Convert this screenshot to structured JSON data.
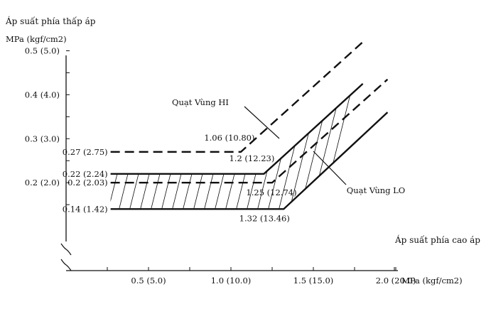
{
  "chart_data": {
    "type": "line",
    "ylabel": "Áp suất phía thấp áp",
    "yunit": "MPa (kgf/cm2)",
    "xlabel": "Áp suất phía cao áp",
    "xunit": "MPa (kgf/cm2)",
    "xlim": [
      0.0,
      2.5
    ],
    "ylim": [
      0.0,
      0.6
    ],
    "x_ticks": [
      {
        "value": 0.5,
        "label": "0.5 (5.0)"
      },
      {
        "value": 1.0,
        "label": "1.0 (10.0)"
      },
      {
        "value": 1.5,
        "label": "1.5 (15.0)"
      },
      {
        "value": 2.0,
        "label": "2.0 (20.0)"
      }
    ],
    "y_ticks": [
      {
        "value": 0.2,
        "label": "0.2 (2.0)"
      },
      {
        "value": 0.3,
        "label": "0.3 (3.0)"
      },
      {
        "value": 0.4,
        "label": "0.4 (4.0)"
      },
      {
        "value": 0.5,
        "label": "0.5 (5.0)"
      }
    ],
    "series": [
      {
        "name": "Quạt Vùng HI",
        "style": "dashed",
        "x": [
          0.27,
          1.06,
          1.8
        ],
        "y": [
          0.27,
          0.27,
          0.52
        ]
      },
      {
        "name": "Quạt Vùng HI",
        "style": "dashed",
        "x": [
          0.27,
          1.25,
          1.95
        ],
        "y": [
          0.2,
          0.2,
          0.435
        ]
      },
      {
        "name": "Quạt Vùng LO",
        "style": "solid",
        "x": [
          0.27,
          1.2,
          1.8
        ],
        "y": [
          0.22,
          0.22,
          0.425
        ]
      },
      {
        "name": "Quạt Vùng LO",
        "style": "solid",
        "x": [
          0.27,
          1.32,
          1.95
        ],
        "y": [
          0.14,
          0.14,
          0.36
        ]
      }
    ],
    "annotations": [
      {
        "text": "0.27 (2.75)",
        "series": 0,
        "at": "start"
      },
      {
        "text": "0.22 (2.24)",
        "series": 2,
        "at": "start"
      },
      {
        "text": "0.2 (2.03)",
        "series": 1,
        "at": "start"
      },
      {
        "text": "0.14 (1.42)",
        "series": 3,
        "at": "start"
      },
      {
        "text": "1.06 (10.80)",
        "series": 0,
        "at": "knee"
      },
      {
        "text": "1.2 (12.23)",
        "series": 2,
        "at": "knee"
      },
      {
        "text": "1.25 (12.74)",
        "series": 1,
        "at": "knee"
      },
      {
        "text": "1.32 (13.46)",
        "series": 3,
        "at": "knee"
      },
      {
        "text": "Quạt Vùng HI",
        "role": "callout"
      },
      {
        "text": "Quạt Vùng LO",
        "role": "callout"
      }
    ],
    "shaded_region": "between LO series (hatched)",
    "grid": false,
    "legend": "none"
  }
}
